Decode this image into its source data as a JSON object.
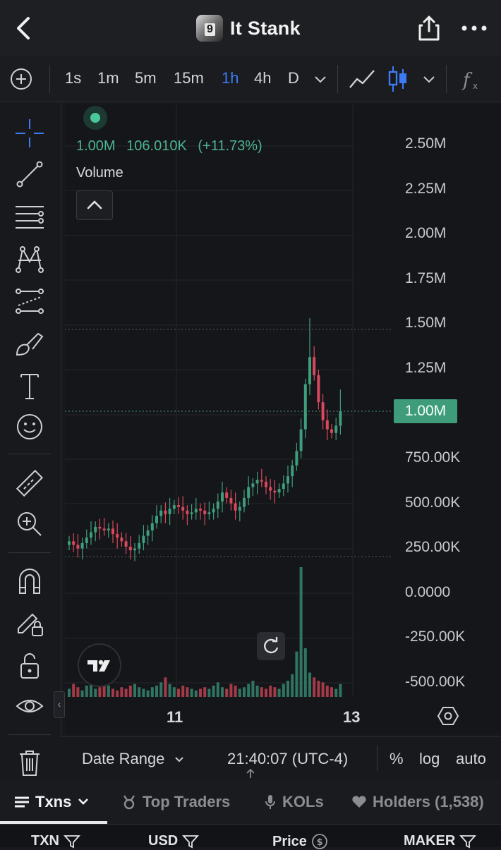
{
  "header": {
    "title": "It Stank",
    "back_icon": "chevron-left-icon",
    "share_icon": "share-icon",
    "more_icon": "more-icon"
  },
  "toolbar": {
    "timeframes": [
      "1s",
      "1m",
      "5m",
      "15m",
      "1h",
      "4h",
      "D"
    ],
    "active_timeframe": "1h",
    "accent": "#3d7bf5"
  },
  "tools": [
    "crosshair",
    "trend-line",
    "fib-levels",
    "pattern",
    "projection",
    "brush",
    "text",
    "emoji",
    "ruler",
    "zoom-in",
    "magnet",
    "lock-drawing",
    "unlock",
    "eye",
    "trash"
  ],
  "legend": {
    "price": "1.00M",
    "change": "106.010K",
    "change_pct": "(+11.73%)",
    "volume_label": "Volume"
  },
  "price_axis": [
    "2.50M",
    "2.25M",
    "2.00M",
    "1.75M",
    "1.50M",
    "1.25M",
    "1.00M",
    "750.00K",
    "500.00K",
    "250.00K",
    "0.0000",
    "-250.00K",
    "-500.00K"
  ],
  "current_price_tag": "1.00M",
  "time_axis": [
    "11",
    "13"
  ],
  "colors": {
    "up": "#3e9e7c",
    "down": "#d9485c",
    "volume_up": "#2f7561",
    "volume_down": "#a53a48"
  },
  "chart_data": {
    "type": "candlestick",
    "series": [
      {
        "name": "",
        "values": [
          0.28,
          0.26,
          0.24,
          0.27,
          0.3,
          0.33,
          0.36,
          0.35,
          0.34,
          0.35,
          0.32,
          0.3,
          0.28,
          0.25,
          0.23,
          0.24,
          0.27,
          0.31,
          0.34,
          0.38,
          0.42,
          0.45,
          0.43,
          0.46,
          0.48,
          0.47,
          0.45,
          0.43,
          0.44,
          0.46,
          0.45,
          0.43,
          0.44,
          0.46,
          0.5,
          0.55,
          0.52,
          0.49,
          0.45,
          0.47,
          0.52,
          0.58,
          0.6,
          0.62,
          0.61,
          0.58,
          0.56,
          0.55,
          0.57,
          0.6,
          0.64,
          0.7,
          0.78,
          0.9,
          1.15,
          1.3,
          1.2,
          1.05,
          0.95,
          0.9,
          0.88,
          0.92,
          1.0
        ]
      }
    ],
    "volume": [
      0.05,
      0.08,
      0.06,
      0.04,
      0.07,
      0.09,
      0.05,
      0.06,
      0.08,
      0.07,
      0.05,
      0.04,
      0.06,
      0.05,
      0.07,
      0.08,
      0.06,
      0.05,
      0.04,
      0.06,
      0.07,
      0.09,
      0.12,
      0.08,
      0.06,
      0.05,
      0.07,
      0.06,
      0.05,
      0.04,
      0.05,
      0.06,
      0.05,
      0.07,
      0.09,
      0.06,
      0.05,
      0.08,
      0.07,
      0.05,
      0.06,
      0.08,
      0.1,
      0.07,
      0.06,
      0.05,
      0.07,
      0.06,
      0.05,
      0.08,
      0.1,
      0.14,
      0.28,
      0.8,
      0.3,
      0.15,
      0.12,
      0.1,
      0.09,
      0.07,
      0.06,
      0.05,
      0.08
    ],
    "xlabel": "",
    "ylabel": "",
    "y_range": [
      "-500.00K",
      "2.50M"
    ]
  },
  "bottombar": {
    "date_range": "Date Range",
    "time": "21:40:07 (UTC-4)",
    "percent": "%",
    "log": "log",
    "auto": "auto"
  },
  "tabs": [
    {
      "label": "Txns",
      "icon": "list-icon"
    },
    {
      "label": "Top Traders",
      "icon": "trophy-icon"
    },
    {
      "label": "KOLs",
      "icon": "mic-icon"
    },
    {
      "label": "Holders (1,538)",
      "icon": "heart-icon"
    }
  ],
  "table_headers": [
    {
      "label": "TXN",
      "icon": "filter-icon"
    },
    {
      "label": "USD",
      "icon": "filter-icon"
    },
    {
      "label": "Price",
      "icon": "dollar-icon"
    },
    {
      "label": "MAKER",
      "icon": "filter-icon"
    }
  ]
}
